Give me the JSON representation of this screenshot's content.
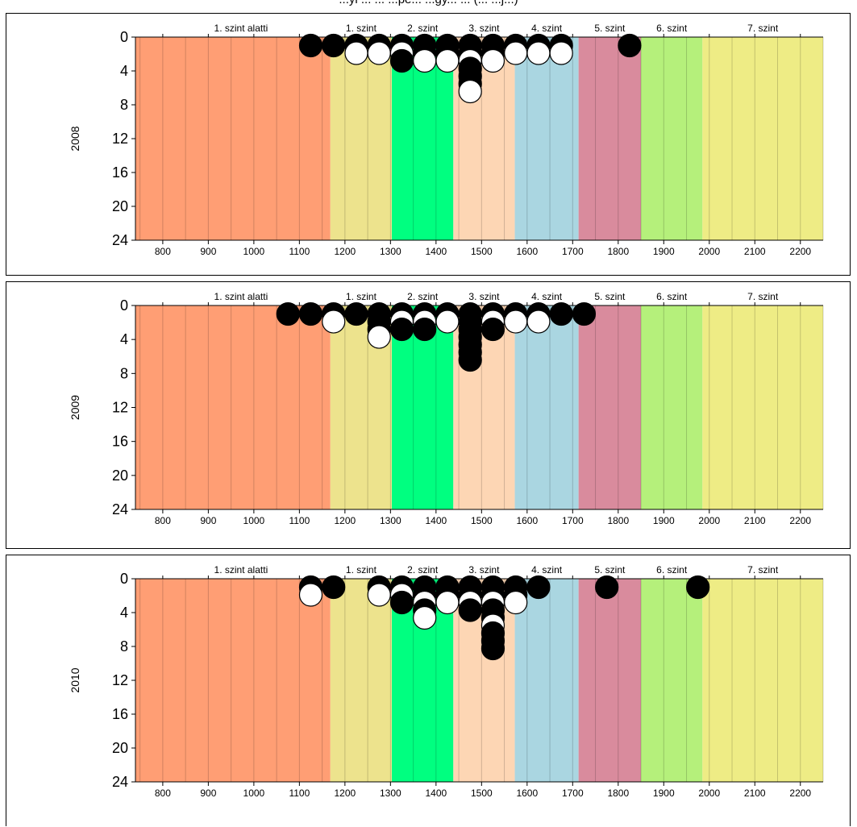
{
  "page": {
    "title_fragment": "...yi ... ... ...pé... ...gy... ... (... ...j...)"
  },
  "chart_data": [
    {
      "type": "scatter",
      "ylabel": "2008",
      "xlim": [
        740,
        2250
      ],
      "ylim": [
        24,
        0
      ],
      "xticks": [
        800,
        900,
        1000,
        1100,
        1200,
        1300,
        1400,
        1500,
        1600,
        1700,
        1800,
        1900,
        2000,
        2100,
        2200
      ],
      "yticks": [
        0,
        4,
        8,
        12,
        16,
        20,
        24
      ],
      "bands": [
        {
          "label": "1. szint alatti",
          "from": 740,
          "to": 1168,
          "color": "#ff9e74"
        },
        {
          "label": "1. szint",
          "from": 1168,
          "to": 1303,
          "color": "#ede38d"
        },
        {
          "label": "2. szint",
          "from": 1303,
          "to": 1438,
          "color": "#00ff80"
        },
        {
          "label": "3. szint",
          "from": 1438,
          "to": 1573,
          "color": "#fdd6b4"
        },
        {
          "label": "4. szint",
          "from": 1573,
          "to": 1713,
          "color": "#aad6e1"
        },
        {
          "label": "5. szint",
          "from": 1713,
          "to": 1850,
          "color": "#d98b9d"
        },
        {
          "label": "6. szint",
          "from": 1850,
          "to": 1985,
          "color": "#b5f07b"
        },
        {
          "label": "7. szint",
          "from": 1985,
          "to": 2250,
          "color": "#eeec85"
        }
      ],
      "columns": [
        {
          "x": 1125,
          "dots": [
            "black"
          ]
        },
        {
          "x": 1175,
          "dots": [
            "black"
          ]
        },
        {
          "x": 1225,
          "dots": [
            "black",
            "white"
          ]
        },
        {
          "x": 1275,
          "dots": [
            "black",
            "white"
          ]
        },
        {
          "x": 1325,
          "dots": [
            "black",
            "white",
            "black"
          ]
        },
        {
          "x": 1375,
          "dots": [
            "black",
            "black",
            "white"
          ]
        },
        {
          "x": 1425,
          "dots": [
            "black",
            "black",
            "white"
          ]
        },
        {
          "x": 1475,
          "dots": [
            "black",
            "black",
            "white",
            "black",
            "black",
            "black",
            "white"
          ]
        },
        {
          "x": 1525,
          "dots": [
            "black",
            "black",
            "white"
          ]
        },
        {
          "x": 1575,
          "dots": [
            "black",
            "white"
          ]
        },
        {
          "x": 1625,
          "dots": [
            "black",
            "white"
          ]
        },
        {
          "x": 1675,
          "dots": [
            "black",
            "white"
          ]
        },
        {
          "x": 1825,
          "dots": [
            "black"
          ]
        }
      ]
    },
    {
      "type": "scatter",
      "ylabel": "2009",
      "xlim": [
        740,
        2250
      ],
      "ylim": [
        24,
        0
      ],
      "xticks": [
        800,
        900,
        1000,
        1100,
        1200,
        1300,
        1400,
        1500,
        1600,
        1700,
        1800,
        1900,
        2000,
        2100,
        2200
      ],
      "yticks": [
        0,
        4,
        8,
        12,
        16,
        20,
        24
      ],
      "bands": [
        {
          "label": "1. szint alatti",
          "from": 740,
          "to": 1168,
          "color": "#ff9e74"
        },
        {
          "label": "1. szint",
          "from": 1168,
          "to": 1303,
          "color": "#ede38d"
        },
        {
          "label": "2. szint",
          "from": 1303,
          "to": 1438,
          "color": "#00ff80"
        },
        {
          "label": "3. szint",
          "from": 1438,
          "to": 1573,
          "color": "#fdd6b4"
        },
        {
          "label": "4. szint",
          "from": 1573,
          "to": 1713,
          "color": "#aad6e1"
        },
        {
          "label": "5. szint",
          "from": 1713,
          "to": 1850,
          "color": "#d98b9d"
        },
        {
          "label": "6. szint",
          "from": 1850,
          "to": 1985,
          "color": "#b5f07b"
        },
        {
          "label": "7. szint",
          "from": 1985,
          "to": 2250,
          "color": "#eeec85"
        }
      ],
      "columns": [
        {
          "x": 1075,
          "dots": [
            "black"
          ]
        },
        {
          "x": 1125,
          "dots": [
            "black"
          ]
        },
        {
          "x": 1175,
          "dots": [
            "black",
            "white"
          ]
        },
        {
          "x": 1225,
          "dots": [
            "black"
          ]
        },
        {
          "x": 1275,
          "dots": [
            "black",
            "black",
            "black",
            "white"
          ]
        },
        {
          "x": 1325,
          "dots": [
            "black",
            "white",
            "black"
          ]
        },
        {
          "x": 1375,
          "dots": [
            "black",
            "white",
            "black"
          ]
        },
        {
          "x": 1425,
          "dots": [
            "black",
            "white"
          ]
        },
        {
          "x": 1475,
          "dots": [
            "black",
            "black",
            "black",
            "black",
            "black",
            "black",
            "black"
          ]
        },
        {
          "x": 1525,
          "dots": [
            "black",
            "white",
            "black"
          ]
        },
        {
          "x": 1575,
          "dots": [
            "black",
            "white"
          ]
        },
        {
          "x": 1625,
          "dots": [
            "black",
            "white"
          ]
        },
        {
          "x": 1675,
          "dots": [
            "black"
          ]
        },
        {
          "x": 1725,
          "dots": [
            "black"
          ]
        }
      ]
    },
    {
      "type": "scatter",
      "ylabel": "2010",
      "xlim": [
        740,
        2250
      ],
      "ylim": [
        24,
        0
      ],
      "xticks": [
        800,
        900,
        1000,
        1100,
        1200,
        1300,
        1400,
        1500,
        1600,
        1700,
        1800,
        1900,
        2000,
        2100,
        2200
      ],
      "yticks": [
        0,
        4,
        8,
        12,
        16,
        20,
        24
      ],
      "bands": [
        {
          "label": "1. szint alatti",
          "from": 740,
          "to": 1168,
          "color": "#ff9e74"
        },
        {
          "label": "1. szint",
          "from": 1168,
          "to": 1303,
          "color": "#ede38d"
        },
        {
          "label": "2. szint",
          "from": 1303,
          "to": 1438,
          "color": "#00ff80"
        },
        {
          "label": "3. szint",
          "from": 1438,
          "to": 1573,
          "color": "#fdd6b4"
        },
        {
          "label": "4. szint",
          "from": 1573,
          "to": 1713,
          "color": "#aad6e1"
        },
        {
          "label": "5. szint",
          "from": 1713,
          "to": 1850,
          "color": "#d98b9d"
        },
        {
          "label": "6. szint",
          "from": 1850,
          "to": 1985,
          "color": "#b5f07b"
        },
        {
          "label": "7. szint",
          "from": 1985,
          "to": 2250,
          "color": "#eeec85"
        }
      ],
      "columns": [
        {
          "x": 1125,
          "dots": [
            "black",
            "white"
          ]
        },
        {
          "x": 1175,
          "dots": [
            "black"
          ]
        },
        {
          "x": 1275,
          "dots": [
            "black",
            "white"
          ]
        },
        {
          "x": 1325,
          "dots": [
            "black",
            "white",
            "black"
          ]
        },
        {
          "x": 1375,
          "dots": [
            "black",
            "black",
            "white",
            "black",
            "white"
          ]
        },
        {
          "x": 1425,
          "dots": [
            "black",
            "black",
            "white"
          ]
        },
        {
          "x": 1475,
          "dots": [
            "black",
            "black",
            "white",
            "black"
          ]
        },
        {
          "x": 1525,
          "dots": [
            "black",
            "black",
            "white",
            "black",
            "black",
            "white",
            "black",
            "black",
            "black"
          ]
        },
        {
          "x": 1575,
          "dots": [
            "black",
            "black",
            "white"
          ]
        },
        {
          "x": 1625,
          "dots": [
            "black"
          ]
        },
        {
          "x": 1775,
          "dots": [
            "black"
          ]
        },
        {
          "x": 1975,
          "dots": [
            "black"
          ]
        }
      ]
    }
  ]
}
